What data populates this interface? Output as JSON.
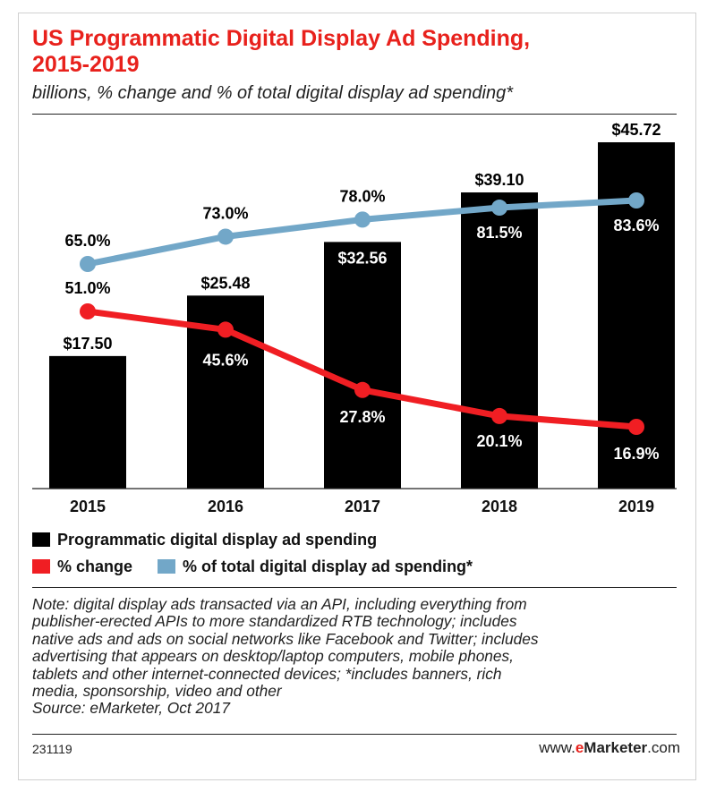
{
  "header": {
    "title_line1": "US Programmatic Digital Display Ad Spending,",
    "title_line2": "2015-2019",
    "subtitle": "billions, % change and % of total digital display ad spending*"
  },
  "legend": {
    "spending": "Programmatic digital display ad spending",
    "change": "% change",
    "share": "% of total digital display ad spending*"
  },
  "colors": {
    "bars": "#000000",
    "change_line": "#f01e23",
    "share_line": "#72a7c8"
  },
  "chart_data": {
    "type": "bar",
    "title": "US Programmatic Digital Display Ad Spending, 2015-2019",
    "subtitle": "billions, % change and % of total digital display ad spending*",
    "categories": [
      "2015",
      "2016",
      "2017",
      "2018",
      "2019"
    ],
    "series": [
      {
        "name": "Programmatic digital display ad spending",
        "type": "bar",
        "values": [
          17.5,
          25.48,
          32.56,
          39.1,
          45.72
        ],
        "labels": [
          "$17.50",
          "$25.48",
          "$32.56",
          "$39.10",
          "$45.72"
        ]
      },
      {
        "name": "% change",
        "type": "line",
        "values": [
          51.0,
          45.6,
          27.8,
          20.1,
          16.9
        ],
        "labels": [
          "51.0%",
          "45.6%",
          "27.8%",
          "20.1%",
          "16.9%"
        ]
      },
      {
        "name": "% of total digital display ad spending*",
        "type": "line",
        "values": [
          65.0,
          73.0,
          78.0,
          81.5,
          83.6
        ],
        "labels": [
          "65.0%",
          "73.0%",
          "78.0%",
          "81.5%",
          "83.6%"
        ]
      }
    ],
    "grid": false,
    "legend_position": "bottom-left"
  },
  "note": {
    "lines": [
      "Note: digital display ads transacted via an API, including everything from",
      "publisher-erected APIs to more standardized RTB technology; includes",
      "native ads and ads on social networks like Facebook and Twitter; includes",
      "advertising that appears on desktop/laptop computers, mobile phones,",
      "tablets and other internet-connected devices; *includes banners, rich",
      "media, sponsorship, video and other"
    ],
    "source": "Source: eMarketer, Oct 2017"
  },
  "footer": {
    "chart_id": "231119",
    "brand_prefix": "www.",
    "brand_accent": "e",
    "brand_bold": "Marketer",
    "brand_suffix": ".com"
  }
}
